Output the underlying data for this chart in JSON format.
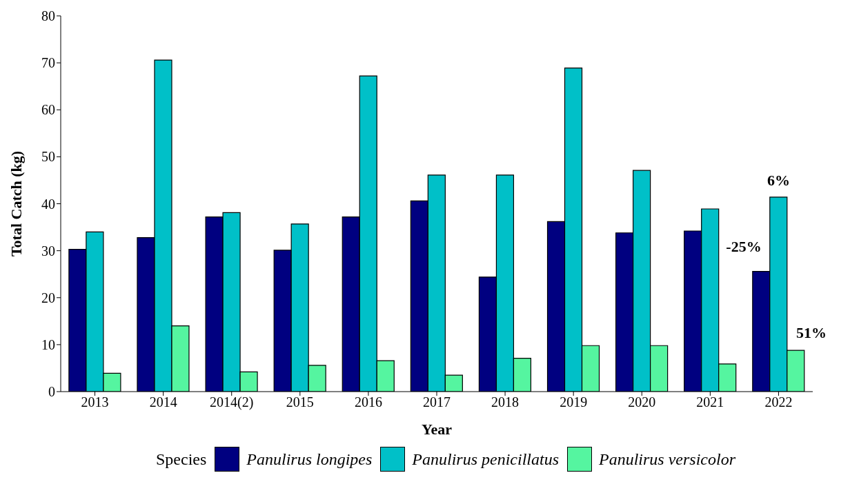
{
  "chart_data": {
    "type": "bar",
    "xlabel": "Year",
    "ylabel": "Total Catch (kg)",
    "legend_title": "Species",
    "legend": "bottom",
    "grid": false,
    "categories": [
      "2013",
      "2014",
      "2014(2)",
      "2015",
      "2016",
      "2017",
      "2018",
      "2019",
      "2020",
      "2021",
      "2022"
    ],
    "ylim": [
      0,
      80
    ],
    "yticks": [
      0,
      10,
      20,
      30,
      40,
      50,
      60,
      70,
      80
    ],
    "series": [
      {
        "name": "Panulirus longipes",
        "color": "#000080",
        "values": [
          30.3,
          32.8,
          37.2,
          30.1,
          37.2,
          40.6,
          24.4,
          36.2,
          33.8,
          34.2,
          25.6
        ]
      },
      {
        "name": "Panulirus penicillatus",
        "color": "#00c0c8",
        "values": [
          34.0,
          70.6,
          38.1,
          35.7,
          67.2,
          46.1,
          46.1,
          68.9,
          47.1,
          38.9,
          41.4
        ]
      },
      {
        "name": "Panulirus versicolor",
        "color": "#55f5a0",
        "values": [
          3.9,
          14.0,
          4.2,
          5.6,
          6.6,
          3.5,
          7.1,
          9.8,
          9.8,
          5.9,
          8.8
        ]
      }
    ],
    "annotations": [
      {
        "text": "6%",
        "x": "2022",
        "y": 41.4
      },
      "-25%",
      "51%"
    ]
  }
}
